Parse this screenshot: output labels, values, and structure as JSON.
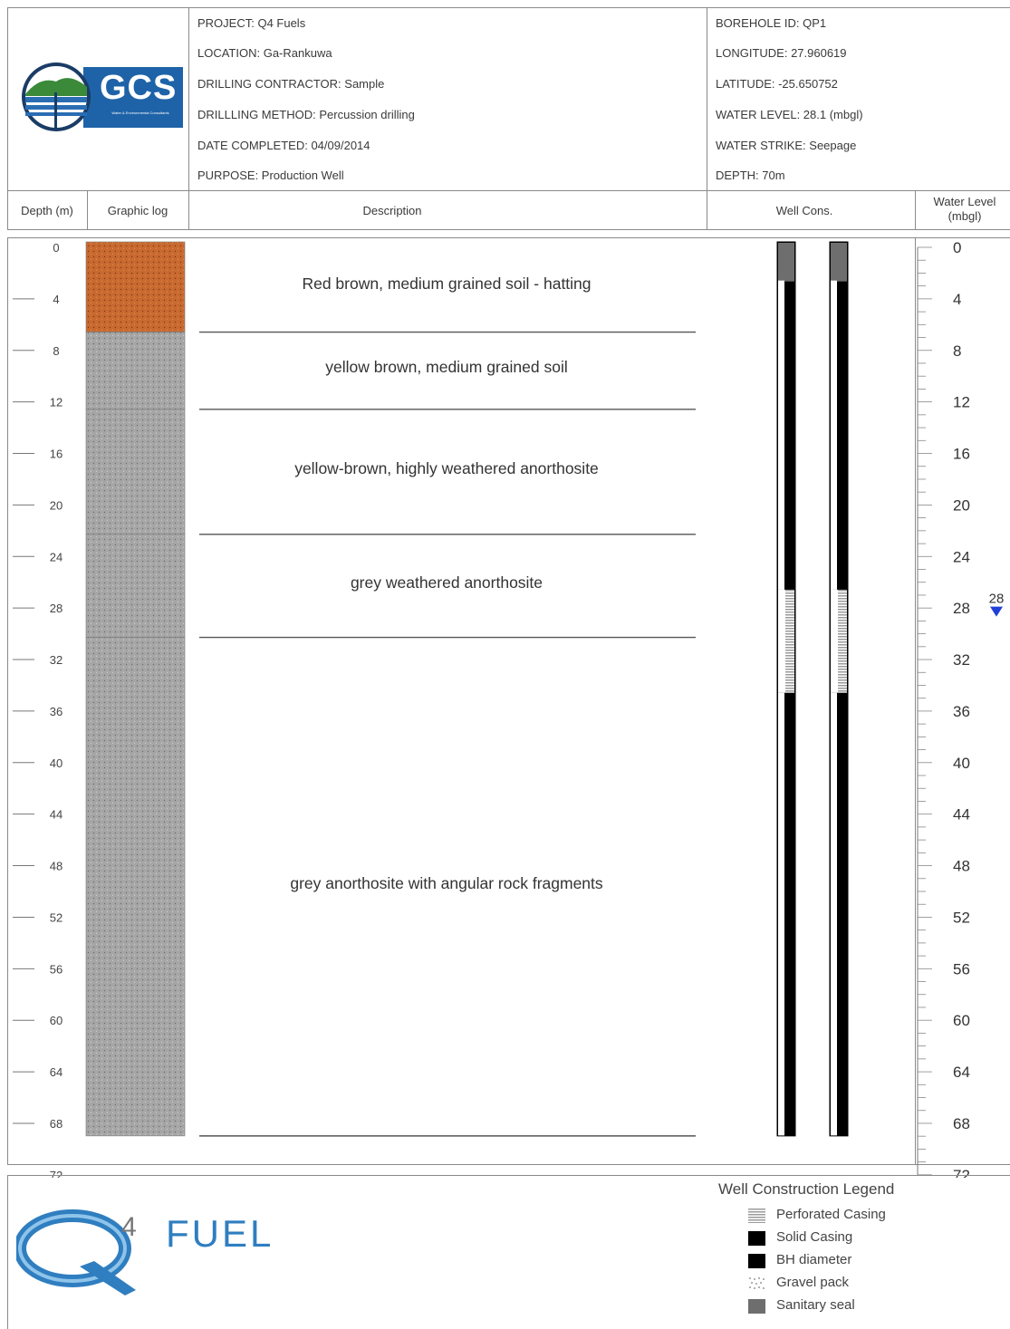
{
  "header": {
    "logo_text": "GCS",
    "logo_subtext": "Water & Environmental Consultants",
    "left_fields": [
      "PROJECT: Q4 Fuels",
      "LOCATION: Ga-Rankuwa",
      "DRILLING CONTRACTOR: Sample",
      "DRILLLING METHOD: Percussion drilling",
      "DATE COMPLETED: 04/09/2014",
      "PURPOSE: Production Well"
    ],
    "right_fields": [
      "BOREHOLE ID: QP1",
      "LONGITUDE: 27.960619",
      "LATITUDE: -25.650752",
      "WATER LEVEL: 28.1 (mbgl)",
      "WATER STRIKE: Seepage",
      "DEPTH: 70m"
    ]
  },
  "columns": {
    "depth": "Depth (m)",
    "graphic_log": "Graphic log",
    "description": "Description",
    "well_cons": "Well Cons.",
    "water_level_line1": "Water Level",
    "water_level_line2": "(mbgl)"
  },
  "depth_ticks": [
    "0",
    "4",
    "8",
    "12",
    "16",
    "20",
    "24",
    "28",
    "32",
    "36",
    "40",
    "44",
    "48",
    "52",
    "56",
    "60",
    "64",
    "68",
    "72"
  ],
  "water_level_ticks": [
    "0",
    "4",
    "8",
    "12",
    "16",
    "20",
    "24",
    "28",
    "32",
    "36",
    "40",
    "44",
    "48",
    "52",
    "56",
    "60",
    "64",
    "68",
    "72"
  ],
  "depth_axis": {
    "min": 0,
    "max": 72,
    "step": 4
  },
  "water_level": {
    "value": 28.1,
    "label": "28",
    "marker_color": "#1f3fd6"
  },
  "layers": [
    {
      "from": 0,
      "to": 7,
      "description": "Red brown, medium grained soil - hatting",
      "fill": "#c86a30"
    },
    {
      "from": 7,
      "to": 13,
      "description": "yellow brown, medium grained soil",
      "fill": "#a6a6a6"
    },
    {
      "from": 13,
      "to": 22.7,
      "description": "yellow-brown, highly weathered anorthosite",
      "fill": "#a6a6a6"
    },
    {
      "from": 22.7,
      "to": 30.7,
      "description": "grey weathered anorthosite",
      "fill": "#a6a6a6"
    },
    {
      "from": 30.7,
      "to": 69.4,
      "description": "grey anorthosite with angular rock fragments",
      "fill": "#a6a6a6"
    }
  ],
  "well_construction": [
    {
      "from": 0,
      "to": 3,
      "type": "Sanitary seal"
    },
    {
      "from": 3,
      "to": 27,
      "type": "Solid Casing"
    },
    {
      "from": 27,
      "to": 35,
      "type": "Perforated Casing"
    },
    {
      "from": 35,
      "to": 69.4,
      "type": "Solid Casing"
    }
  ],
  "legend": {
    "title": "Well Construction Legend",
    "items": [
      {
        "label": "Perforated Casing",
        "swatch": "perforated"
      },
      {
        "label": "Solid Casing",
        "swatch": "solid"
      },
      {
        "label": "BH diameter",
        "swatch": "solid"
      },
      {
        "label": "Gravel pack",
        "swatch": "gravel"
      },
      {
        "label": "Sanitary seal",
        "swatch": "seal"
      }
    ]
  },
  "footer": {
    "brand_mark": "4",
    "brand_text": "FUEL"
  },
  "colors": {
    "border": "#8a8a8a",
    "soil": "#c86a30",
    "rock": "#a6a6a6",
    "gcs_blue": "#1e63a8",
    "q4_blue": "#2f7ec0"
  }
}
